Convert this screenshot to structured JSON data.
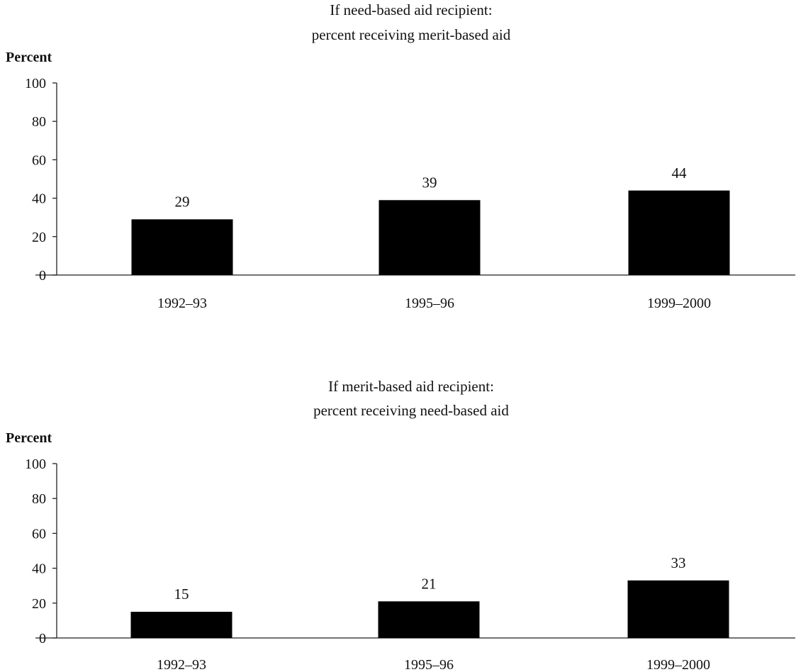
{
  "chart_data": [
    {
      "type": "bar",
      "title": "If need-based aid recipient:",
      "subtitle": "percent receiving merit-based aid",
      "ylabel": "Percent",
      "xlabel": "",
      "ylim": [
        0,
        100
      ],
      "yticks": [
        0,
        20,
        40,
        60,
        80,
        100
      ],
      "categories": [
        "1992–93",
        "1995–96",
        "1999–2000"
      ],
      "values": [
        29,
        39,
        44
      ],
      "bar_color": "#000000",
      "grid": false,
      "legend": "none"
    },
    {
      "type": "bar",
      "title": "If merit-based aid recipient:",
      "subtitle": "percent receiving need-based aid",
      "ylabel": "Percent",
      "xlabel": "",
      "ylim": [
        0,
        100
      ],
      "yticks": [
        0,
        20,
        40,
        60,
        80,
        100
      ],
      "categories": [
        "1992–93",
        "1995–96",
        "1999–2000"
      ],
      "values": [
        15,
        21,
        33
      ],
      "bar_color": "#000000",
      "grid": false,
      "legend": "none"
    }
  ]
}
